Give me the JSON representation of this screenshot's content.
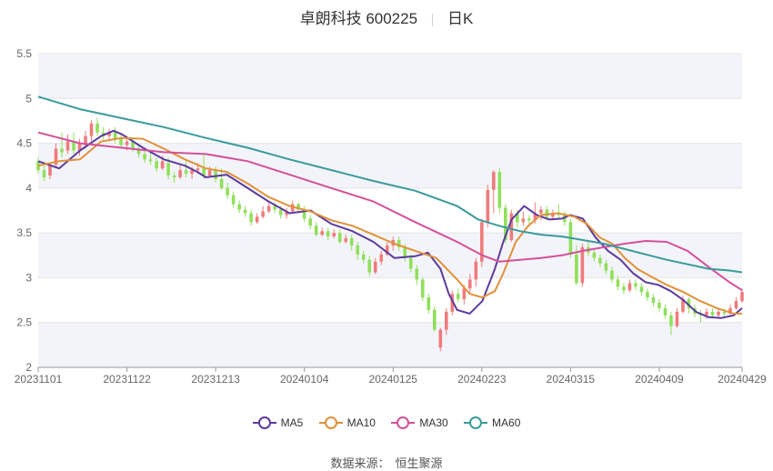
{
  "title": {
    "name": "卓朗科技 600225",
    "period": "日K"
  },
  "source": {
    "label": "数据来源：",
    "value": "恒生聚源"
  },
  "colors": {
    "up": "#f07b7b",
    "down": "#8fe05a",
    "ma5": "#5b3a9e",
    "ma10": "#e0913a",
    "ma30": "#d4509a",
    "ma60": "#3a9a9c",
    "band": "#f3f4f9",
    "grid": "#e4e4e4"
  },
  "chart_data": {
    "type": "candlestick",
    "ylim": [
      2,
      5.5
    ],
    "yticks": [
      "2",
      "2.5",
      "3",
      "3.5",
      "4",
      "4.5",
      "5",
      "5.5"
    ],
    "yvalues": [
      2,
      2.5,
      3,
      3.5,
      4,
      4.5,
      5,
      5.5
    ],
    "xticks": [
      "20231101",
      "20231122",
      "20231213",
      "20240104",
      "20240125",
      "20240223",
      "20240315",
      "20240409",
      "20240429"
    ],
    "xtick_index": [
      0,
      15,
      30,
      45,
      60,
      75,
      90,
      105,
      119
    ],
    "n": 120,
    "candles": [
      [
        4.3,
        4.2,
        4.34,
        4.16
      ],
      [
        4.2,
        4.12,
        4.25,
        4.08
      ],
      [
        4.14,
        4.26,
        4.28,
        4.1
      ],
      [
        4.26,
        4.44,
        4.5,
        4.22
      ],
      [
        4.44,
        4.4,
        4.62,
        4.34
      ],
      [
        4.42,
        4.52,
        4.6,
        4.38
      ],
      [
        4.52,
        4.42,
        4.62,
        4.38
      ],
      [
        4.42,
        4.5,
        4.55,
        4.36
      ],
      [
        4.48,
        4.58,
        4.64,
        4.44
      ],
      [
        4.58,
        4.72,
        4.76,
        4.52
      ],
      [
        4.72,
        4.62,
        4.78,
        4.58
      ],
      [
        4.62,
        4.58,
        4.68,
        4.54
      ],
      [
        4.58,
        4.62,
        4.66,
        4.52
      ],
      [
        4.62,
        4.55,
        4.68,
        4.5
      ],
      [
        4.55,
        4.48,
        4.6,
        4.44
      ],
      [
        4.48,
        4.52,
        4.58,
        4.42
      ],
      [
        4.52,
        4.44,
        4.56,
        4.4
      ],
      [
        4.44,
        4.38,
        4.48,
        4.34
      ],
      [
        4.38,
        4.32,
        4.42,
        4.28
      ],
      [
        4.32,
        4.3,
        4.4,
        4.26
      ],
      [
        4.3,
        4.22,
        4.34,
        4.18
      ],
      [
        4.22,
        4.3,
        4.36,
        4.2
      ],
      [
        4.28,
        4.14,
        4.34,
        4.1
      ],
      [
        4.14,
        4.12,
        4.18,
        4.06
      ],
      [
        4.12,
        4.2,
        4.26,
        4.1
      ],
      [
        4.2,
        4.16,
        4.3,
        4.12
      ],
      [
        4.16,
        4.2,
        4.24,
        4.1
      ],
      [
        4.2,
        4.22,
        4.28,
        4.16
      ],
      [
        4.22,
        4.14,
        4.38,
        4.1
      ],
      [
        4.14,
        4.2,
        4.24,
        4.12
      ],
      [
        4.2,
        4.1,
        4.24,
        4.06
      ],
      [
        4.1,
        4.0,
        4.22,
        3.98
      ],
      [
        4.0,
        3.92,
        4.06,
        3.88
      ],
      [
        3.92,
        3.82,
        3.96,
        3.78
      ],
      [
        3.82,
        3.76,
        3.86,
        3.72
      ],
      [
        3.76,
        3.72,
        3.8,
        3.68
      ],
      [
        3.72,
        3.62,
        3.76,
        3.58
      ],
      [
        3.62,
        3.68,
        3.72,
        3.6
      ],
      [
        3.68,
        3.74,
        3.8,
        3.66
      ],
      [
        3.74,
        3.8,
        3.84,
        3.72
      ],
      [
        3.8,
        3.76,
        3.84,
        3.72
      ],
      [
        3.76,
        3.7,
        3.8,
        3.66
      ],
      [
        3.7,
        3.74,
        3.78,
        3.66
      ],
      [
        3.74,
        3.82,
        3.86,
        3.72
      ],
      [
        3.82,
        3.76,
        3.84,
        3.72
      ],
      [
        3.76,
        3.66,
        3.8,
        3.62
      ],
      [
        3.66,
        3.58,
        3.7,
        3.54
      ],
      [
        3.58,
        3.48,
        3.62,
        3.46
      ],
      [
        3.48,
        3.52,
        3.56,
        3.46
      ],
      [
        3.52,
        3.46,
        3.56,
        3.42
      ],
      [
        3.46,
        3.5,
        3.54,
        3.44
      ],
      [
        3.5,
        3.4,
        3.54,
        3.38
      ],
      [
        3.4,
        3.44,
        3.48,
        3.38
      ],
      [
        3.44,
        3.36,
        3.48,
        3.3
      ],
      [
        3.36,
        3.26,
        3.4,
        3.2
      ],
      [
        3.26,
        3.2,
        3.3,
        3.16
      ],
      [
        3.2,
        3.06,
        3.24,
        3.02
      ],
      [
        3.06,
        3.18,
        3.22,
        3.04
      ],
      [
        3.18,
        3.26,
        3.3,
        3.14
      ],
      [
        3.26,
        3.36,
        3.4,
        3.24
      ],
      [
        3.36,
        3.42,
        3.46,
        3.3
      ],
      [
        3.42,
        3.34,
        3.46,
        3.3
      ],
      [
        3.34,
        3.22,
        3.38,
        3.18
      ],
      [
        3.22,
        3.1,
        3.26,
        3.06
      ],
      [
        3.1,
        2.98,
        3.14,
        2.92
      ],
      [
        2.98,
        2.78,
        3.0,
        2.74
      ],
      [
        2.78,
        2.64,
        2.82,
        2.6
      ],
      [
        2.64,
        2.42,
        2.68,
        2.4
      ],
      [
        2.22,
        2.42,
        2.44,
        2.18
      ],
      [
        2.42,
        2.62,
        2.66,
        2.36
      ],
      [
        2.62,
        2.82,
        2.86,
        2.58
      ],
      [
        2.82,
        2.76,
        2.88,
        2.72
      ],
      [
        2.76,
        2.88,
        2.92,
        2.7
      ],
      [
        2.88,
        2.98,
        3.04,
        2.82
      ],
      [
        2.98,
        3.18,
        3.22,
        2.9
      ],
      [
        3.18,
        3.62,
        3.66,
        3.12
      ],
      [
        3.62,
        3.98,
        4.04,
        3.56
      ],
      [
        3.98,
        4.18,
        4.2,
        3.72
      ],
      [
        4.18,
        3.78,
        4.22,
        3.72
      ],
      [
        3.78,
        3.42,
        3.82,
        3.38
      ],
      [
        3.42,
        3.72,
        3.76,
        3.4
      ],
      [
        3.72,
        3.62,
        3.76,
        3.56
      ],
      [
        3.62,
        3.66,
        3.74,
        3.58
      ],
      [
        3.66,
        3.64,
        3.7,
        3.6
      ],
      [
        3.64,
        3.72,
        3.84,
        3.6
      ],
      [
        3.72,
        3.76,
        3.8,
        3.64
      ],
      [
        3.76,
        3.68,
        3.8,
        3.64
      ],
      [
        3.68,
        3.72,
        3.76,
        3.64
      ],
      [
        3.72,
        3.7,
        3.82,
        3.66
      ],
      [
        3.7,
        3.62,
        3.74,
        3.58
      ],
      [
        3.62,
        3.26,
        3.66,
        3.22
      ],
      [
        3.26,
        2.94,
        3.36,
        2.92
      ],
      [
        2.94,
        3.34,
        3.38,
        2.9
      ],
      [
        3.34,
        3.28,
        3.42,
        3.24
      ],
      [
        3.28,
        3.22,
        3.32,
        3.18
      ],
      [
        3.22,
        3.16,
        3.26,
        3.12
      ],
      [
        3.16,
        3.08,
        3.2,
        3.04
      ],
      [
        3.08,
        2.98,
        3.12,
        2.94
      ],
      [
        2.98,
        2.9,
        3.02,
        2.86
      ],
      [
        2.9,
        2.86,
        2.94,
        2.82
      ],
      [
        2.86,
        2.94,
        2.98,
        2.84
      ],
      [
        2.94,
        2.9,
        2.98,
        2.86
      ],
      [
        2.9,
        2.84,
        2.94,
        2.8
      ],
      [
        2.84,
        2.78,
        2.88,
        2.74
      ],
      [
        2.78,
        2.72,
        2.82,
        2.68
      ],
      [
        2.72,
        2.66,
        2.76,
        2.62
      ],
      [
        2.66,
        2.58,
        2.7,
        2.54
      ],
      [
        2.58,
        2.46,
        2.62,
        2.36
      ],
      [
        2.46,
        2.62,
        2.66,
        2.44
      ],
      [
        2.62,
        2.76,
        2.8,
        2.6
      ],
      [
        2.76,
        2.66,
        2.78,
        2.6
      ],
      [
        2.66,
        2.6,
        2.7,
        2.56
      ],
      [
        2.6,
        2.58,
        2.64,
        2.5
      ],
      [
        2.58,
        2.62,
        2.66,
        2.54
      ],
      [
        2.62,
        2.58,
        2.66,
        2.56
      ],
      [
        2.58,
        2.62,
        2.66,
        2.56
      ],
      [
        2.62,
        2.6,
        2.66,
        2.56
      ],
      [
        2.6,
        2.66,
        2.7,
        2.58
      ],
      [
        2.66,
        2.74,
        2.78,
        2.64
      ],
      [
        2.74,
        2.84,
        2.88,
        2.72
      ]
    ],
    "series": [
      {
        "name": "MA5",
        "pts": [
          [
            0,
            4.3
          ],
          [
            5,
            4.22
          ],
          [
            10,
            4.42
          ],
          [
            15,
            4.58
          ],
          [
            18,
            4.64
          ],
          [
            20,
            4.6
          ],
          [
            25,
            4.45
          ],
          [
            30,
            4.32
          ],
          [
            35,
            4.25
          ],
          [
            38,
            4.18
          ],
          [
            40,
            4.12
          ],
          [
            45,
            4.15
          ],
          [
            50,
            4.0
          ],
          [
            55,
            3.85
          ],
          [
            60,
            3.72
          ],
          [
            65,
            3.75
          ],
          [
            70,
            3.6
          ],
          [
            75,
            3.52
          ],
          [
            80,
            3.4
          ],
          [
            85,
            3.22
          ],
          [
            90,
            3.24
          ],
          [
            93,
            3.28
          ],
          [
            96,
            3.1
          ],
          [
            98,
            2.82
          ],
          [
            100,
            2.64
          ],
          [
            103,
            2.6
          ],
          [
            106,
            2.74
          ],
          [
            109,
            3.1
          ],
          [
            111,
            3.4
          ],
          [
            113,
            3.65
          ],
          [
            116,
            3.8
          ],
          [
            119,
            3.7
          ],
          [
            122,
            3.65
          ],
          [
            125,
            3.66
          ],
          [
            127,
            3.7
          ],
          [
            130,
            3.66
          ],
          [
            133,
            3.45
          ],
          [
            136,
            3.3
          ],
          [
            139,
            3.2
          ],
          [
            142,
            3.05
          ],
          [
            145,
            2.95
          ],
          [
            148,
            2.92
          ],
          [
            151,
            2.85
          ],
          [
            154,
            2.75
          ],
          [
            157,
            2.62
          ],
          [
            160,
            2.56
          ],
          [
            163,
            2.55
          ],
          [
            166,
            2.58
          ],
          [
            168,
            2.66
          ]
        ],
        "color": "#5b3a9e"
      },
      {
        "name": "MA10",
        "pts": [
          [
            0,
            4.25
          ],
          [
            5,
            4.3
          ],
          [
            10,
            4.32
          ],
          [
            15,
            4.52
          ],
          [
            20,
            4.56
          ],
          [
            25,
            4.55
          ],
          [
            30,
            4.44
          ],
          [
            35,
            4.32
          ],
          [
            40,
            4.22
          ],
          [
            45,
            4.18
          ],
          [
            50,
            4.05
          ],
          [
            55,
            3.9
          ],
          [
            60,
            3.8
          ],
          [
            65,
            3.74
          ],
          [
            70,
            3.64
          ],
          [
            75,
            3.58
          ],
          [
            80,
            3.48
          ],
          [
            85,
            3.38
          ],
          [
            90,
            3.3
          ],
          [
            95,
            3.22
          ],
          [
            100,
            2.98
          ],
          [
            103,
            2.82
          ],
          [
            106,
            2.78
          ],
          [
            109,
            2.85
          ],
          [
            111,
            3.05
          ],
          [
            114,
            3.4
          ],
          [
            117,
            3.58
          ],
          [
            120,
            3.7
          ],
          [
            124,
            3.72
          ],
          [
            128,
            3.68
          ],
          [
            131,
            3.6
          ],
          [
            134,
            3.45
          ],
          [
            137,
            3.38
          ],
          [
            140,
            3.22
          ],
          [
            143,
            3.1
          ],
          [
            146,
            3.02
          ],
          [
            150,
            2.92
          ],
          [
            154,
            2.84
          ],
          [
            158,
            2.74
          ],
          [
            162,
            2.66
          ],
          [
            166,
            2.6
          ],
          [
            168,
            2.6
          ]
        ],
        "color": "#e0913a"
      },
      {
        "name": "MA30",
        "pts": [
          [
            0,
            4.62
          ],
          [
            10,
            4.5
          ],
          [
            20,
            4.45
          ],
          [
            30,
            4.4
          ],
          [
            40,
            4.38
          ],
          [
            50,
            4.3
          ],
          [
            60,
            4.15
          ],
          [
            70,
            4.0
          ],
          [
            80,
            3.85
          ],
          [
            90,
            3.62
          ],
          [
            100,
            3.4
          ],
          [
            106,
            3.25
          ],
          [
            110,
            3.18
          ],
          [
            115,
            3.2
          ],
          [
            120,
            3.22
          ],
          [
            125,
            3.25
          ],
          [
            130,
            3.3
          ],
          [
            135,
            3.34
          ],
          [
            140,
            3.38
          ],
          [
            145,
            3.41
          ],
          [
            150,
            3.4
          ],
          [
            155,
            3.3
          ],
          [
            160,
            3.12
          ],
          [
            165,
            2.95
          ],
          [
            168,
            2.86
          ]
        ],
        "color": "#d4509a"
      },
      {
        "name": "MA60",
        "pts": [
          [
            0,
            5.02
          ],
          [
            10,
            4.88
          ],
          [
            20,
            4.78
          ],
          [
            30,
            4.68
          ],
          [
            40,
            4.56
          ],
          [
            50,
            4.45
          ],
          [
            60,
            4.32
          ],
          [
            70,
            4.2
          ],
          [
            80,
            4.08
          ],
          [
            90,
            3.97
          ],
          [
            100,
            3.8
          ],
          [
            105,
            3.65
          ],
          [
            110,
            3.58
          ],
          [
            115,
            3.52
          ],
          [
            120,
            3.48
          ],
          [
            125,
            3.46
          ],
          [
            130,
            3.42
          ],
          [
            135,
            3.38
          ],
          [
            140,
            3.32
          ],
          [
            145,
            3.26
          ],
          [
            150,
            3.2
          ],
          [
            155,
            3.15
          ],
          [
            160,
            3.1
          ],
          [
            165,
            3.08
          ],
          [
            168,
            3.06
          ]
        ],
        "color": "#3a9a9c"
      }
    ],
    "legend": {
      "placement": "bottom",
      "items": [
        "MA5",
        "MA10",
        "MA30",
        "MA60"
      ]
    }
  }
}
